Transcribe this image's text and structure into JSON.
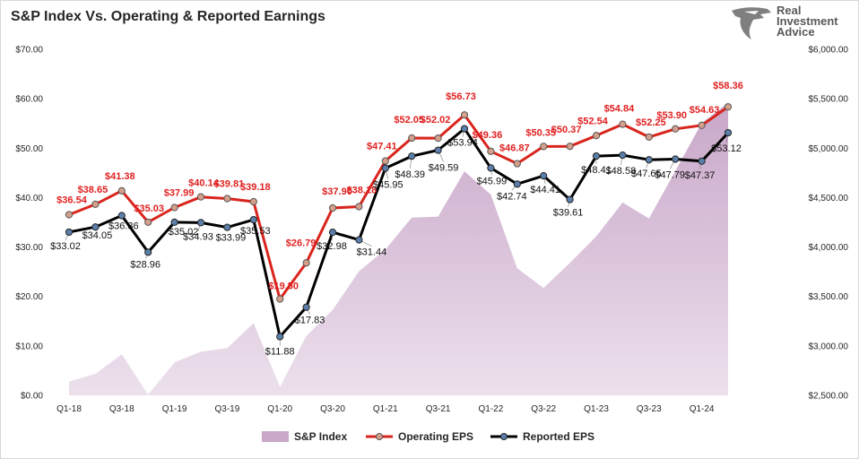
{
  "chart_title": "S&P Index Vs. Operating & Reported Earnings",
  "brand": {
    "lines": [
      "Real",
      "Investment",
      "Advice"
    ],
    "logo_icon": "eagle-head-icon"
  },
  "colors": {
    "sp_index": "#c9a7c9",
    "operating": "#d9251d",
    "operating_marker": "#d4a08c",
    "reported": "#000000",
    "reported_marker": "#5b7faa",
    "tick_text": "#262626"
  },
  "chart_data": {
    "type": "line",
    "title": "S&P Index Vs. Operating & Reported Earnings",
    "x": [
      "Q1-18",
      "Q2-18",
      "Q3-18",
      "Q4-18",
      "Q1-19",
      "Q2-19",
      "Q3-19",
      "Q4-19",
      "Q1-20",
      "Q2-20",
      "Q3-20",
      "Q4-20",
      "Q1-21",
      "Q2-21",
      "Q3-21",
      "Q4-21",
      "Q1-22",
      "Q2-22",
      "Q3-22",
      "Q4-22",
      "Q1-23",
      "Q2-23",
      "Q3-23",
      "Q4-23",
      "Q1-24",
      "Q2-24"
    ],
    "x_tick_labels": [
      "Q1-18",
      "Q3-18",
      "Q1-19",
      "Q3-19",
      "Q1-20",
      "Q3-20",
      "Q1-21",
      "Q3-21",
      "Q1-22",
      "Q3-22",
      "Q1-23",
      "Q3-23",
      "Q1-24"
    ],
    "left_axis": {
      "ticks": [
        "$0.00",
        "$10.00",
        "$20.00",
        "$30.00",
        "$40.00",
        "$50.00",
        "$60.00",
        "$70.00"
      ],
      "ylim": [
        0,
        70
      ]
    },
    "right_axis": {
      "ticks": [
        "$2,500.00",
        "$3,000.00",
        "$3,500.00",
        "$4,000.00",
        "$4,500.00",
        "$5,000.00",
        "$5,500.00",
        "$6,000.00"
      ],
      "ylim": [
        2500,
        6000
      ]
    },
    "grid": false,
    "legend_position": "bottom",
    "series": [
      {
        "name": "S&P Index",
        "type": "area",
        "axis": "right",
        "values": [
          2640,
          2718,
          2914,
          2507,
          2834,
          2942,
          2977,
          3231,
          2585,
          3100,
          3363,
          3756,
          3973,
          4298,
          4308,
          4766,
          4530,
          3785,
          3586,
          3840,
          4109,
          4450,
          4288,
          4770,
          5254,
          5460
        ]
      },
      {
        "name": "Operating EPS",
        "type": "line",
        "axis": "left",
        "values": [
          36.54,
          38.65,
          41.38,
          35.03,
          37.99,
          40.14,
          39.81,
          39.18,
          19.5,
          26.79,
          37.9,
          38.18,
          47.41,
          52.05,
          52.02,
          56.73,
          49.36,
          46.87,
          50.35,
          50.37,
          52.54,
          54.84,
          52.25,
          53.9,
          54.63,
          58.36
        ],
        "labels": [
          "$36.54",
          "$38.65",
          "$41.38",
          "$35.03",
          "$37.99",
          "$40.14",
          "$39.81",
          "$39.18",
          "$19.50",
          "$26.79",
          "$37.90",
          "$38.18",
          "$47.41",
          "$52.05",
          "$52.02",
          "$56.73",
          "$49.36",
          "$46.87",
          "$50.35",
          "$50.37",
          "$52.54",
          "$54.84",
          "$52.25",
          "$53.90",
          "$54.63",
          "$58.36"
        ]
      },
      {
        "name": "Reported EPS",
        "type": "line",
        "axis": "left",
        "values": [
          33.02,
          34.05,
          36.36,
          28.96,
          35.02,
          34.93,
          33.99,
          35.53,
          11.88,
          17.83,
          32.98,
          31.44,
          45.95,
          48.39,
          49.59,
          53.94,
          45.99,
          42.74,
          44.41,
          39.61,
          48.41,
          48.58,
          47.65,
          47.79,
          47.37,
          53.12
        ],
        "labels": [
          "$33.02",
          "$34.05",
          "$36.36",
          "$28.96",
          "$35.02",
          "$34.93",
          "$33.99",
          "$35.53",
          "$11.88",
          "$17.83",
          "$32.98",
          "$31.44",
          "$45.95",
          "$48.39",
          "$49.59",
          "$53.94",
          "$45.99",
          "$42.74",
          "$44.41",
          "$39.61",
          "$48.41",
          "$48.58",
          "$47.65",
          "$47.79",
          "$47.37",
          "$53.12"
        ]
      }
    ]
  },
  "legend": {
    "sp_index": "S&P Index",
    "operating": "Operating EPS",
    "reported": "Reported EPS"
  }
}
